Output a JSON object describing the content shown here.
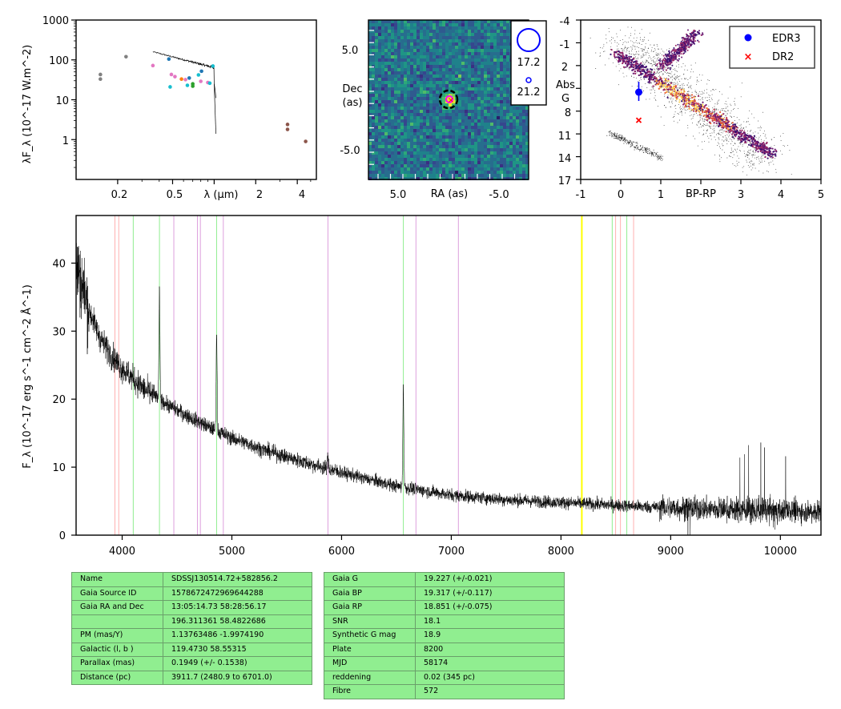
{
  "colors": {
    "balmer": "#90ee90",
    "metal": "#dda0dd",
    "caii": "#ffb0b0",
    "marker": "#ffff00"
  },
  "sed": {
    "xlabel_prefix": "λ (μm)",
    "ylabel": "λF_λ (10^-17 W.m^-2)",
    "xticks": [
      "0.2",
      "0.5",
      "2",
      "4"
    ],
    "yticks": [
      "1",
      "10",
      "100",
      "1000"
    ],
    "points": [
      {
        "x": 0.15,
        "y": 43,
        "color": "#808080"
      },
      {
        "x": 0.15,
        "y": 33,
        "color": "#808080"
      },
      {
        "x": 0.23,
        "y": 120,
        "color": "#808080"
      },
      {
        "x": 0.36,
        "y": 72,
        "color": "#e377c2"
      },
      {
        "x": 0.47,
        "y": 105,
        "color": "#1f77b4"
      },
      {
        "x": 0.48,
        "y": 21,
        "color": "#17becf"
      },
      {
        "x": 0.49,
        "y": 43,
        "color": "#e377c2"
      },
      {
        "x": 0.52,
        "y": 38,
        "color": "#e377c2"
      },
      {
        "x": 0.58,
        "y": 33,
        "color": "#ff7f0e"
      },
      {
        "x": 0.62,
        "y": 32,
        "color": "#e377c2"
      },
      {
        "x": 0.64,
        "y": 23,
        "color": "#17becf"
      },
      {
        "x": 0.66,
        "y": 35,
        "color": "#1f77b4"
      },
      {
        "x": 0.7,
        "y": 22,
        "color": "#2ca02c"
      },
      {
        "x": 0.7,
        "y": 25,
        "color": "#2ca02c"
      },
      {
        "x": 0.77,
        "y": 42,
        "color": "#17becf"
      },
      {
        "x": 0.8,
        "y": 29,
        "color": "#e377c2"
      },
      {
        "x": 0.81,
        "y": 52,
        "color": "#1f77b4"
      },
      {
        "x": 0.9,
        "y": 27,
        "color": "#e377c2"
      },
      {
        "x": 0.93,
        "y": 26,
        "color": "#17becf"
      },
      {
        "x": 0.98,
        "y": 70,
        "color": "#17becf"
      },
      {
        "x": 3.4,
        "y": 2.4,
        "color": "#8c564b"
      },
      {
        "x": 3.4,
        "y": 1.8,
        "color": "#8c564b"
      },
      {
        "x": 4.6,
        "y": 0.9,
        "color": "#8c564b"
      }
    ]
  },
  "image": {
    "xlabel": "RA (as)",
    "ylabel_line1": "Dec",
    "ylabel_line2": "(as)",
    "xticks": [
      "5.0",
      "-5.0"
    ],
    "yticks": [
      "5.0",
      "-5.0"
    ],
    "legend": [
      "17.2",
      "21.2"
    ]
  },
  "hrd": {
    "xlabel": "BP-RP",
    "ylabel_line1": "Abs",
    "ylabel_line2": "G",
    "xticks": [
      "-1",
      "0",
      "1",
      "3",
      "4",
      "5"
    ],
    "yticks": [
      "-4",
      "-1",
      "2",
      "8",
      "11",
      "14",
      "17"
    ],
    "legend": [
      {
        "label": "EDR3",
        "color": "#0000ff"
      },
      {
        "label": "DR2",
        "color": "#ff0000"
      }
    ],
    "edr3": {
      "x": 0.45,
      "y": 5.5
    },
    "dr2": {
      "x": 0.45,
      "y": 9.2
    }
  },
  "chart_data": [
    {
      "type": "scatter",
      "xlabel": "λ (μm)",
      "ylabel": "λF_λ (10^-17 W.m^-2)",
      "xscale": "log",
      "yscale": "log",
      "xlim": [
        0.1,
        5.5
      ],
      "ylim": [
        0.1,
        1000
      ]
    },
    {
      "type": "heatmap",
      "xlabel": "RA (as)",
      "ylabel": "Dec (as)",
      "legend": [
        "17.2",
        "21.2"
      ]
    },
    {
      "type": "scatter",
      "xlabel": "BP-RP",
      "ylabel": "Abs G",
      "xlim": [
        -1,
        5
      ],
      "ylim": [
        17,
        -4
      ],
      "series": [
        {
          "name": "EDR3",
          "x": [
            0.45
          ],
          "y": [
            5.5
          ]
        },
        {
          "name": "DR2",
          "x": [
            0.45
          ],
          "y": [
            9.2
          ]
        }
      ]
    },
    {
      "type": "line",
      "xlabel": "",
      "ylabel": "F_λ (10^-17 erg s^-1 cm^-2 Å^-1)",
      "xlim": [
        3580,
        10370
      ],
      "ylim": [
        0,
        47
      ],
      "xticks": [
        "4000",
        "5000",
        "6000",
        "7000",
        "8000",
        "9000",
        "10000"
      ],
      "yticks": [
        "0",
        "10",
        "20",
        "30",
        "40"
      ],
      "continuum": {
        "x": [
          3580,
          3700,
          3800,
          3900,
          4000,
          4100,
          4200,
          4400,
          4600,
          4800,
          5000,
          5300,
          5600,
          6000,
          6500,
          7000,
          7500,
          8000,
          8500,
          9000,
          9500,
          10000,
          10370
        ],
        "y": [
          40,
          33,
          29,
          26.5,
          24.5,
          23,
          21.5,
          19.3,
          17.5,
          15.8,
          14.3,
          12.5,
          11,
          9.2,
          7.2,
          5.9,
          5.2,
          4.8,
          4.4,
          4.0,
          3.8,
          3.6,
          3.5
        ]
      },
      "emission_lines": [
        {
          "x": 4340,
          "peak": 36
        },
        {
          "x": 4861,
          "peak": 29.5
        },
        {
          "x": 5876,
          "peak": 11.5
        },
        {
          "x": 6563,
          "peak": 21.8
        }
      ],
      "balmer_lines": [
        4101,
        4340,
        4861,
        6563,
        8467,
        8600
      ],
      "metal_lines": [
        4471,
        4686,
        4713,
        4922,
        5876,
        6678,
        7065
      ],
      "caii_lines": [
        3934,
        3969,
        8498,
        8542,
        8662
      ],
      "marker_line": 8190
    }
  ],
  "tables": {
    "left": [
      [
        "Name",
        "SDSSJ130514.72+582856.2"
      ],
      [
        "Gaia Source ID",
        "1578672472969644288"
      ],
      [
        "Gaia RA and Dec",
        "13:05:14.73    58:28:56.17"
      ],
      [
        "",
        "196.311361    58.4822686"
      ],
      [
        "PM (mas/Y)",
        "1.13763486    -1.9974190"
      ],
      [
        "Galactic (l, b )",
        "119.4730    58.55315"
      ],
      [
        "Parallax (mas)",
        "0.1949 (+/- 0.1538)"
      ],
      [
        "Distance (pc)",
        "3911.7 (2480.9 to 6701.0)"
      ]
    ],
    "right": [
      [
        "Gaia G",
        "19.227 (+/-0.021)"
      ],
      [
        "Gaia BP",
        "19.317 (+/-0.117)"
      ],
      [
        "Gaia RP",
        "18.851 (+/-0.075)"
      ],
      [
        "SNR",
        "18.1"
      ],
      [
        "Synthetic G mag",
        "18.9"
      ],
      [
        "Plate",
        "8200"
      ],
      [
        "MJD",
        "58174"
      ],
      [
        "reddening",
        "0.02 (345 pc)"
      ],
      [
        "Fibre",
        "572"
      ]
    ]
  }
}
